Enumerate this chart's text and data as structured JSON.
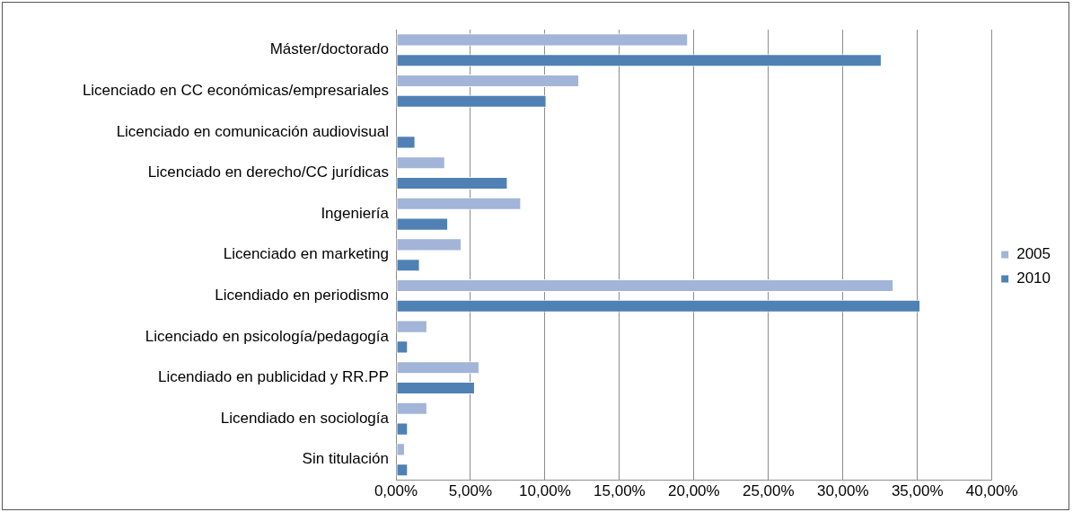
{
  "chart_data": {
    "type": "bar",
    "orientation": "horizontal",
    "categories": [
      "Máster/doctorado",
      "Licenciado en CC económicas/empresariales",
      "Licenciado en comunicación audiovisual",
      "Licenciado en derecho/CC jurídicas",
      "Ingeniería",
      "Licenciado en marketing",
      "Licendiado en periodismo",
      "Licenciado en psicología/pedagogía",
      "Licendiado en publicidad y RR.PP",
      "Licendiado en sociología",
      "Sin titulación"
    ],
    "series": [
      {
        "name": "2005",
        "color": "#a2b4d8",
        "values": [
          19.6,
          12.3,
          0,
          3.3,
          8.4,
          4.4,
          33.4,
          2.1,
          5.6,
          2.1,
          0.6
        ]
      },
      {
        "name": "2010",
        "color": "#4f81b5",
        "values": [
          32.6,
          10.1,
          1.3,
          7.5,
          3.5,
          1.6,
          35.2,
          0.8,
          5.3,
          0.8,
          0.8
        ]
      }
    ],
    "xlim": [
      0,
      40
    ],
    "xticks": [
      {
        "value": 0,
        "label": "0,00%"
      },
      {
        "value": 5,
        "label": "5,00%"
      },
      {
        "value": 10,
        "label": "10,00%"
      },
      {
        "value": 15,
        "label": "15,00%"
      },
      {
        "value": 20,
        "label": "20,00%"
      },
      {
        "value": 25,
        "label": "25,00%"
      },
      {
        "value": 30,
        "label": "30,00%"
      },
      {
        "value": 35,
        "label": "35,00%"
      },
      {
        "value": 40,
        "label": "40,00%"
      }
    ],
    "grid": "x",
    "legend": "right"
  }
}
